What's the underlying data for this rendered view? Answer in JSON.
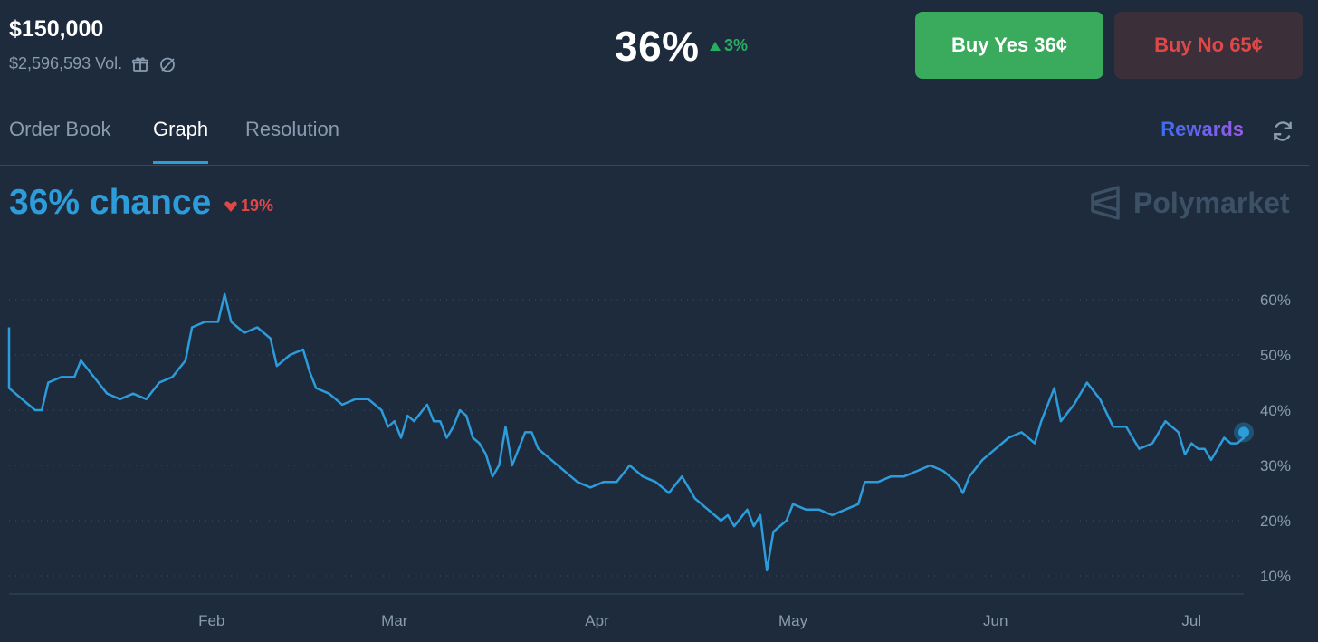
{
  "header": {
    "prize": "$150,000",
    "volume": "$2,596,593 Vol.",
    "price": "36%",
    "price_change": "3%",
    "buy_yes": "Buy Yes 36¢",
    "buy_no": "Buy No 65¢"
  },
  "tabs": [
    {
      "label": "Order Book"
    },
    {
      "label": "Graph"
    },
    {
      "label": "Resolution"
    }
  ],
  "rewards_label": "Rewards",
  "chance_label": "36% chance",
  "chance_change": "19%",
  "brand": "Polymarket",
  "colors": {
    "background": "#1d2b3d",
    "line": "#2d9cdb",
    "up": "#27ae60",
    "down": "#e04848",
    "buy_yes": "#3aaa5c"
  },
  "icons": [
    "gift-icon",
    "clock-slash-icon",
    "triangle-up-icon",
    "refresh-icon",
    "heart-down-icon",
    "polymarket-logo-icon"
  ],
  "chart_data": {
    "type": "line",
    "x_domain": [
      "2025-01-01",
      "2025-07-09"
    ],
    "ylim": [
      10,
      60
    ],
    "grid": true,
    "y_ticks": [
      60,
      50,
      40,
      30,
      20,
      10
    ],
    "y_tick_labels": [
      "60%",
      "50%",
      "40%",
      "30%",
      "20%",
      "10%"
    ],
    "x_tick_labels": [
      {
        "label": "Feb",
        "date": "2025-02-01"
      },
      {
        "label": "Mar",
        "date": "2025-03-01"
      },
      {
        "label": "Apr",
        "date": "2025-04-01"
      },
      {
        "label": "May",
        "date": "2025-05-01"
      },
      {
        "label": "Jun",
        "date": "2025-06-01"
      },
      {
        "label": "Jul",
        "date": "2025-07-01"
      }
    ],
    "series": [
      {
        "values": [
          {
            "x": "2025-01-01",
            "y": 55
          },
          {
            "x": "2025-01-01",
            "y": 44
          },
          {
            "x": "2025-01-03",
            "y": 42
          },
          {
            "x": "2025-01-05",
            "y": 40
          },
          {
            "x": "2025-01-06",
            "y": 40
          },
          {
            "x": "2025-01-07",
            "y": 45
          },
          {
            "x": "2025-01-09",
            "y": 46
          },
          {
            "x": "2025-01-11",
            "y": 46
          },
          {
            "x": "2025-01-12",
            "y": 49
          },
          {
            "x": "2025-01-14",
            "y": 46
          },
          {
            "x": "2025-01-16",
            "y": 43
          },
          {
            "x": "2025-01-18",
            "y": 42
          },
          {
            "x": "2025-01-20",
            "y": 43
          },
          {
            "x": "2025-01-22",
            "y": 42
          },
          {
            "x": "2025-01-24",
            "y": 45
          },
          {
            "x": "2025-01-26",
            "y": 46
          },
          {
            "x": "2025-01-28",
            "y": 49
          },
          {
            "x": "2025-01-29",
            "y": 55
          },
          {
            "x": "2025-01-31",
            "y": 56
          },
          {
            "x": "2025-02-02",
            "y": 56
          },
          {
            "x": "2025-02-03",
            "y": 61
          },
          {
            "x": "2025-02-04",
            "y": 56
          },
          {
            "x": "2025-02-06",
            "y": 54
          },
          {
            "x": "2025-02-08",
            "y": 55
          },
          {
            "x": "2025-02-10",
            "y": 53
          },
          {
            "x": "2025-02-11",
            "y": 48
          },
          {
            "x": "2025-02-13",
            "y": 50
          },
          {
            "x": "2025-02-15",
            "y": 51
          },
          {
            "x": "2025-02-16",
            "y": 47
          },
          {
            "x": "2025-02-17",
            "y": 44
          },
          {
            "x": "2025-02-19",
            "y": 43
          },
          {
            "x": "2025-02-21",
            "y": 41
          },
          {
            "x": "2025-02-23",
            "y": 42
          },
          {
            "x": "2025-02-25",
            "y": 42
          },
          {
            "x": "2025-02-27",
            "y": 40
          },
          {
            "x": "2025-02-28",
            "y": 37
          },
          {
            "x": "2025-03-01",
            "y": 38
          },
          {
            "x": "2025-03-02",
            "y": 35
          },
          {
            "x": "2025-03-03",
            "y": 39
          },
          {
            "x": "2025-03-04",
            "y": 38
          },
          {
            "x": "2025-03-06",
            "y": 41
          },
          {
            "x": "2025-03-07",
            "y": 38
          },
          {
            "x": "2025-03-08",
            "y": 38
          },
          {
            "x": "2025-03-09",
            "y": 35
          },
          {
            "x": "2025-03-10",
            "y": 37
          },
          {
            "x": "2025-03-11",
            "y": 40
          },
          {
            "x": "2025-03-12",
            "y": 39
          },
          {
            "x": "2025-03-13",
            "y": 35
          },
          {
            "x": "2025-03-14",
            "y": 34
          },
          {
            "x": "2025-03-15",
            "y": 32
          },
          {
            "x": "2025-03-16",
            "y": 28
          },
          {
            "x": "2025-03-17",
            "y": 30
          },
          {
            "x": "2025-03-18",
            "y": 37
          },
          {
            "x": "2025-03-19",
            "y": 30
          },
          {
            "x": "2025-03-20",
            "y": 33
          },
          {
            "x": "2025-03-21",
            "y": 36
          },
          {
            "x": "2025-03-22",
            "y": 36
          },
          {
            "x": "2025-03-23",
            "y": 33
          },
          {
            "x": "2025-03-25",
            "y": 31
          },
          {
            "x": "2025-03-27",
            "y": 29
          },
          {
            "x": "2025-03-29",
            "y": 27
          },
          {
            "x": "2025-03-31",
            "y": 26
          },
          {
            "x": "2025-04-02",
            "y": 27
          },
          {
            "x": "2025-04-04",
            "y": 27
          },
          {
            "x": "2025-04-06",
            "y": 30
          },
          {
            "x": "2025-04-08",
            "y": 28
          },
          {
            "x": "2025-04-10",
            "y": 27
          },
          {
            "x": "2025-04-12",
            "y": 25
          },
          {
            "x": "2025-04-14",
            "y": 28
          },
          {
            "x": "2025-04-16",
            "y": 24
          },
          {
            "x": "2025-04-18",
            "y": 22
          },
          {
            "x": "2025-04-20",
            "y": 20
          },
          {
            "x": "2025-04-21",
            "y": 21
          },
          {
            "x": "2025-04-22",
            "y": 19
          },
          {
            "x": "2025-04-24",
            "y": 22
          },
          {
            "x": "2025-04-25",
            "y": 19
          },
          {
            "x": "2025-04-26",
            "y": 21
          },
          {
            "x": "2025-04-27",
            "y": 11
          },
          {
            "x": "2025-04-28",
            "y": 18
          },
          {
            "x": "2025-04-29",
            "y": 19
          },
          {
            "x": "2025-04-30",
            "y": 20
          },
          {
            "x": "2025-05-01",
            "y": 23
          },
          {
            "x": "2025-05-03",
            "y": 22
          },
          {
            "x": "2025-05-05",
            "y": 22
          },
          {
            "x": "2025-05-07",
            "y": 21
          },
          {
            "x": "2025-05-09",
            "y": 22
          },
          {
            "x": "2025-05-11",
            "y": 23
          },
          {
            "x": "2025-05-12",
            "y": 27
          },
          {
            "x": "2025-05-14",
            "y": 27
          },
          {
            "x": "2025-05-16",
            "y": 28
          },
          {
            "x": "2025-05-18",
            "y": 28
          },
          {
            "x": "2025-05-20",
            "y": 29
          },
          {
            "x": "2025-05-22",
            "y": 30
          },
          {
            "x": "2025-05-24",
            "y": 29
          },
          {
            "x": "2025-05-26",
            "y": 27
          },
          {
            "x": "2025-05-27",
            "y": 25
          },
          {
            "x": "2025-05-28",
            "y": 28
          },
          {
            "x": "2025-05-30",
            "y": 31
          },
          {
            "x": "2025-06-01",
            "y": 33
          },
          {
            "x": "2025-06-03",
            "y": 35
          },
          {
            "x": "2025-06-05",
            "y": 36
          },
          {
            "x": "2025-06-07",
            "y": 34
          },
          {
            "x": "2025-06-08",
            "y": 38
          },
          {
            "x": "2025-06-10",
            "y": 44
          },
          {
            "x": "2025-06-11",
            "y": 38
          },
          {
            "x": "2025-06-13",
            "y": 41
          },
          {
            "x": "2025-06-15",
            "y": 45
          },
          {
            "x": "2025-06-17",
            "y": 42
          },
          {
            "x": "2025-06-19",
            "y": 37
          },
          {
            "x": "2025-06-21",
            "y": 37
          },
          {
            "x": "2025-06-23",
            "y": 33
          },
          {
            "x": "2025-06-25",
            "y": 34
          },
          {
            "x": "2025-06-27",
            "y": 38
          },
          {
            "x": "2025-06-29",
            "y": 36
          },
          {
            "x": "2025-06-30",
            "y": 32
          },
          {
            "x": "2025-07-01",
            "y": 34
          },
          {
            "x": "2025-07-02",
            "y": 33
          },
          {
            "x": "2025-07-03",
            "y": 33
          },
          {
            "x": "2025-07-04",
            "y": 31
          },
          {
            "x": "2025-07-05",
            "y": 33
          },
          {
            "x": "2025-07-06",
            "y": 35
          },
          {
            "x": "2025-07-07",
            "y": 34
          },
          {
            "x": "2025-07-08",
            "y": 34
          },
          {
            "x": "2025-07-09",
            "y": 35
          },
          {
            "x": "2025-07-09",
            "y": 36
          }
        ]
      }
    ]
  }
}
